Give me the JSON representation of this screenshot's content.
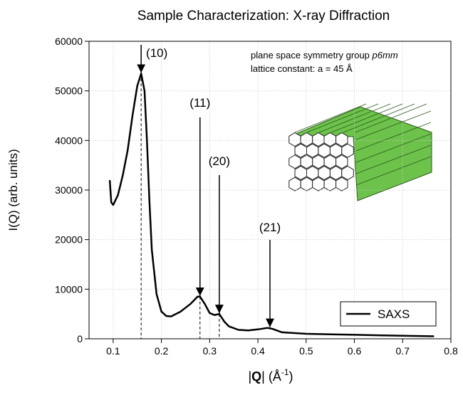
{
  "chart_data": {
    "type": "line",
    "title": "Sample Characterization: X-ray Diffraction",
    "x_label": [
      "|",
      "Q",
      "| (Å",
      "-1",
      ")"
    ],
    "y_label": "I(Q) (arb. units)",
    "xlim": [
      0.05,
      0.8
    ],
    "xticks": [
      0.1,
      0.2,
      0.3,
      0.4,
      0.5,
      0.6,
      0.7,
      0.8
    ],
    "ylim": [
      0,
      60000
    ],
    "yticks": [
      0,
      10000,
      20000,
      30000,
      40000,
      50000,
      60000
    ],
    "grid": true,
    "legend": "lower right",
    "x": [
      0.093,
      0.096,
      0.1,
      0.11,
      0.12,
      0.13,
      0.14,
      0.15,
      0.158,
      0.165,
      0.17,
      0.175,
      0.18,
      0.19,
      0.2,
      0.21,
      0.22,
      0.24,
      0.26,
      0.275,
      0.28,
      0.29,
      0.3,
      0.31,
      0.32,
      0.33,
      0.34,
      0.36,
      0.38,
      0.4,
      0.42,
      0.43,
      0.45,
      0.5,
      0.55,
      0.6,
      0.65,
      0.7,
      0.765
    ],
    "series": [
      {
        "name": "SAXS",
        "color": "#000000",
        "values": [
          32000,
          27500,
          27000,
          29000,
          33000,
          38000,
          45000,
          51000,
          53500,
          50000,
          40000,
          28000,
          18000,
          9000,
          5500,
          4600,
          4500,
          5500,
          7000,
          8500,
          8500,
          7000,
          5200,
          4800,
          5000,
          3500,
          2500,
          1800,
          1700,
          1900,
          2200,
          2000,
          1300,
          1000,
          900,
          800,
          700,
          600,
          500
        ]
      }
    ],
    "annotations": [
      {
        "label": "(10)",
        "x": 0.158,
        "y": 53500
      },
      {
        "label": "(11)",
        "x": 0.28,
        "y": 8500
      },
      {
        "label": "(20)",
        "x": 0.32,
        "y": 5000
      },
      {
        "label": "(21)",
        "x": 0.425,
        "y": 2200
      }
    ],
    "inset_text": {
      "line1": "plane space symmetry group ",
      "line1_italic": "p6mm",
      "line2": "lattice constant: a = 45 Å"
    }
  }
}
